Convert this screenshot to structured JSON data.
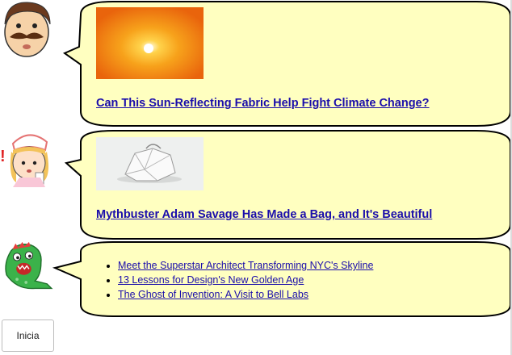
{
  "posts": [
    {
      "avatar": "mustache-man-icon",
      "thumbnail": "sunset-sun-image",
      "headline": "Can This Sun-Reflecting Fabric Help Fight Climate Change?"
    },
    {
      "avatar": "nurse-girl-icon",
      "thumbnail": "crystal-bag-image",
      "headline": "Mythbuster Adam Savage Has Made a Bag, and It's Beautiful"
    },
    {
      "avatar": "green-dinosaur-icon",
      "links": [
        "Meet the Superstar Architect Transforming NYC's Skyline",
        "13 Lessons for Design's New Golden Age",
        "The Ghost of Invention: A Visit to Bell Labs"
      ]
    }
  ],
  "start_button": {
    "label": "Inicia"
  },
  "colors": {
    "bubble_fill": "#ffffc0",
    "bubble_stroke": "#000000",
    "link": "#1a0dab"
  }
}
